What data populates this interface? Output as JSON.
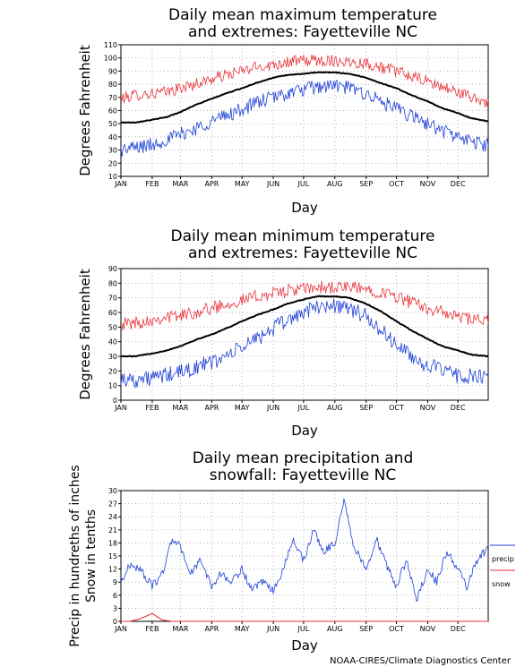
{
  "footer": "NOAA-CIRES/Climate Diagnostics Center",
  "colors": {
    "mean": "#000000",
    "max_extreme": "#e8343a",
    "min_extreme": "#1c3fd6",
    "precip": "#1c3fd6",
    "snow": "#e8343a",
    "grid": "#9a9a9a"
  },
  "chart_data": [
    {
      "type": "line",
      "title": [
        "Daily mean maximum temperature",
        "and extremes: Fayetteville NC"
      ],
      "xlabel": "Day",
      "ylabel": "Degrees Fahrenheit",
      "ylim": [
        10,
        110
      ],
      "yticks": [
        10,
        20,
        30,
        40,
        50,
        60,
        70,
        80,
        90,
        100,
        110
      ],
      "xticks": [
        "JAN",
        "FEB",
        "MAR",
        "APR",
        "MAY",
        "JUN",
        "JUL",
        "AUG",
        "SEP",
        "OCT",
        "NOV",
        "DEC"
      ],
      "grid": true,
      "x": [
        1,
        15,
        32,
        46,
        60,
        74,
        91,
        105,
        121,
        135,
        152,
        166,
        182,
        196,
        213,
        227,
        244,
        258,
        274,
        288,
        305,
        319,
        335,
        349,
        365
      ],
      "series": [
        {
          "key": "max",
          "values": [
            69,
            72,
            73,
            74,
            77,
            80,
            84,
            87,
            90,
            93,
            95,
            97,
            98,
            98,
            98,
            97,
            96,
            93,
            90,
            86,
            82,
            78,
            74,
            70,
            66
          ]
        },
        {
          "key": "mean",
          "values": [
            51,
            51,
            53,
            55,
            59,
            64,
            69,
            73,
            77,
            81,
            85,
            87,
            88,
            89,
            89,
            88,
            85,
            81,
            77,
            72,
            67,
            62,
            58,
            54,
            52
          ]
        },
        {
          "key": "min",
          "values": [
            30,
            32,
            34,
            38,
            42,
            46,
            52,
            56,
            61,
            66,
            70,
            73,
            76,
            78,
            79,
            77,
            73,
            67,
            61,
            56,
            50,
            45,
            40,
            36,
            34
          ]
        }
      ]
    },
    {
      "type": "line",
      "title": [
        "Daily mean minimum temperature",
        "and extremes: Fayetteville NC"
      ],
      "xlabel": "Day",
      "ylabel": "Degrees Fahrenheit",
      "ylim": [
        0,
        90
      ],
      "yticks": [
        0,
        10,
        20,
        30,
        40,
        50,
        60,
        70,
        80,
        90
      ],
      "xticks": [
        "JAN",
        "FEB",
        "MAR",
        "APR",
        "MAY",
        "JUN",
        "JUL",
        "AUG",
        "SEP",
        "OCT",
        "NOV",
        "DEC"
      ],
      "grid": true,
      "x": [
        1,
        15,
        32,
        46,
        60,
        74,
        91,
        105,
        121,
        135,
        152,
        166,
        182,
        196,
        213,
        227,
        244,
        258,
        274,
        288,
        305,
        319,
        335,
        349,
        365
      ],
      "series": [
        {
          "key": "max",
          "values": [
            52,
            53,
            55,
            57,
            58,
            60,
            63,
            66,
            68,
            71,
            73,
            75,
            76,
            77,
            77,
            77,
            76,
            74,
            71,
            67,
            63,
            60,
            57,
            55,
            54
          ]
        },
        {
          "key": "mean",
          "values": [
            30,
            30,
            32,
            34,
            37,
            41,
            45,
            49,
            54,
            58,
            62,
            66,
            69,
            71,
            71,
            70,
            66,
            61,
            54,
            48,
            42,
            37,
            34,
            31,
            30
          ]
        },
        {
          "key": "min",
          "values": [
            15,
            14,
            15,
            17,
            19,
            22,
            26,
            30,
            36,
            42,
            49,
            55,
            60,
            64,
            65,
            63,
            57,
            48,
            38,
            30,
            24,
            20,
            17,
            16,
            15
          ]
        }
      ]
    },
    {
      "type": "line",
      "title": [
        "Daily mean precipitation and",
        "snowfall: Fayetteville NC"
      ],
      "xlabel": "Day",
      "ylabel": [
        "Precip in hundreths of inches",
        "Snow in tenths"
      ],
      "ylim": [
        0,
        30
      ],
      "yticks": [
        0,
        3,
        6,
        9,
        12,
        15,
        18,
        21,
        24,
        27,
        30
      ],
      "xticks": [
        "JAN",
        "FEB",
        "MAR",
        "APR",
        "MAY",
        "JUN",
        "JUL",
        "AUG",
        "SEP",
        "OCT",
        "NOV",
        "DEC"
      ],
      "grid": true,
      "x": [
        1,
        10,
        20,
        32,
        42,
        52,
        60,
        70,
        80,
        91,
        100,
        110,
        121,
        131,
        141,
        152,
        162,
        172,
        182,
        192,
        202,
        213,
        222,
        232,
        244,
        254,
        264,
        274,
        284,
        294,
        305,
        314,
        324,
        335,
        344,
        354,
        365
      ],
      "legend": {
        "placement": "right",
        "entries": [
          "precip",
          "snow"
        ]
      },
      "series": [
        {
          "key": "precip",
          "name": "precip",
          "values": [
            9,
            13,
            12,
            8,
            11,
            19,
            17,
            11,
            14,
            8,
            11,
            9,
            12,
            7,
            9,
            7,
            12,
            19,
            14,
            21,
            16,
            18,
            28,
            17,
            12,
            19,
            13,
            8,
            14,
            5,
            12,
            9,
            16,
            12,
            8,
            14,
            17
          ]
        },
        {
          "key": "snow",
          "name": "snow",
          "values": [
            0,
            0,
            0.6,
            1.8,
            0.3,
            0,
            0,
            0,
            0,
            0,
            0,
            0,
            0,
            0,
            0,
            0,
            0,
            0,
            0,
            0,
            0,
            0,
            0,
            0,
            0,
            0,
            0,
            0,
            0,
            0,
            0,
            0,
            0,
            0,
            0,
            0,
            0
          ]
        }
      ]
    }
  ]
}
